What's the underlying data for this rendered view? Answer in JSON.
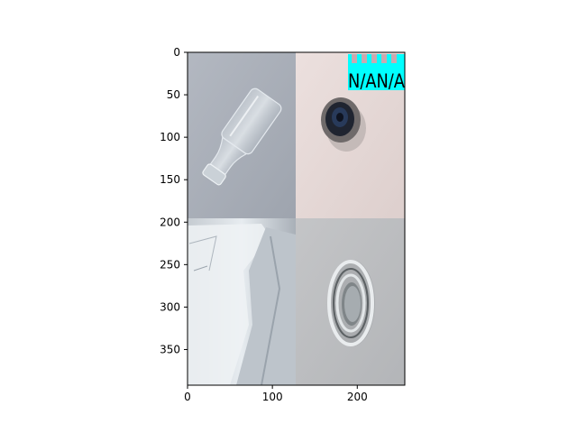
{
  "chart_data": {
    "type": "image",
    "x_ticks": [
      0,
      100,
      200
    ],
    "y_ticks": [
      0,
      50,
      100,
      150,
      200,
      250,
      300,
      350
    ],
    "xlim": [
      0,
      256
    ],
    "ylim": [
      392,
      0
    ],
    "tiles": [
      {
        "subject": "glass bottle lying on its side",
        "background": "#a7acb6"
      },
      {
        "subject": "dark bottle mouth seen from above",
        "background": "#e6d6d4"
      },
      {
        "subject": "crumpled white paper close-up",
        "background": "#c9cdd2"
      },
      {
        "subject": "metal can lid with rings",
        "background": "#bdbfc1"
      }
    ],
    "overlay_label": {
      "text": "N/AN/A",
      "color": "#00ffff"
    }
  }
}
